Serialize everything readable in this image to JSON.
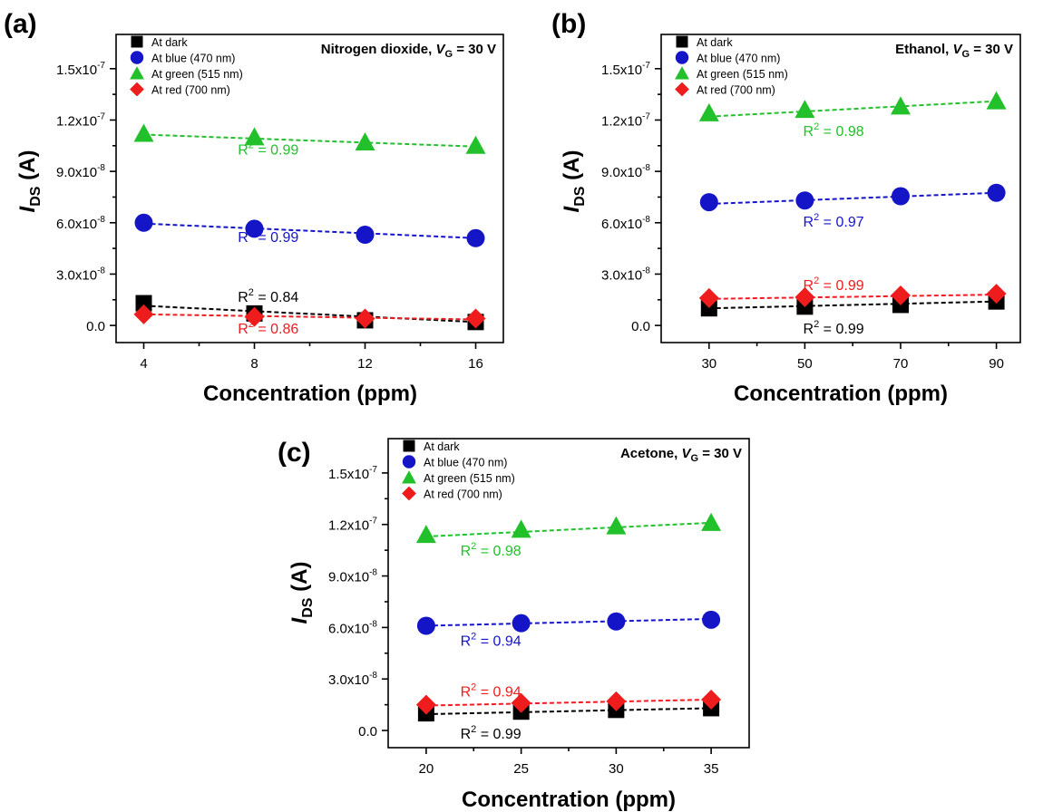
{
  "chart_data": [
    {
      "panel": "(a)",
      "type": "scatter",
      "title_main": "Nitrogen dioxide, ",
      "title_var": "V",
      "title_sub": "G",
      "title_rest": " = 30 V",
      "xlabel": "Concentration (ppm)",
      "ylabel_main": "I",
      "ylabel_sub": "DS",
      "ylabel_unit": " (A)",
      "xlim": [
        3,
        17
      ],
      "ylim": [
        -1e-08,
        1.7e-07
      ],
      "xticks": [
        4,
        8,
        12,
        16
      ],
      "xticklabels": [
        "4",
        "8",
        "12",
        "16"
      ],
      "yticks": [
        0,
        3e-08,
        6e-08,
        9e-08,
        1.2e-07,
        1.5e-07
      ],
      "yticklabels": [
        {
          "m": "0.0",
          "e": ""
        },
        {
          "m": "3.0x10",
          "e": "-8"
        },
        {
          "m": "6.0x10",
          "e": "-8"
        },
        {
          "m": "9.0x10",
          "e": "-8"
        },
        {
          "m": "1.2x10",
          "e": "-7"
        },
        {
          "m": "1.5x10",
          "e": "-7"
        }
      ],
      "series": [
        {
          "name": "At dark",
          "marker": "square",
          "color": "#000000",
          "x": [
            4,
            8,
            12,
            16
          ],
          "y": [
            1.3e-08,
            7e-09,
            3e-09,
            2e-09
          ],
          "fit": [
            1.15e-08,
            2e-09
          ],
          "r2": "0.84",
          "r2_pos": [
            8.5,
            1.7e-08
          ]
        },
        {
          "name": "At blue (470 nm)",
          "marker": "circle",
          "color": "#1515c8",
          "x": [
            4,
            8,
            12,
            16
          ],
          "y": [
            6e-08,
            5.65e-08,
            5.3e-08,
            5.1e-08
          ],
          "fit": [
            5.95e-08,
            5.1e-08
          ],
          "r2": "0.99",
          "r2_pos": [
            8.5,
            5.2e-08
          ]
        },
        {
          "name": "At green (515 nm)",
          "marker": "triangle",
          "color": "#22c02a",
          "x": [
            4,
            8,
            12,
            16
          ],
          "y": [
            1.12e-07,
            1.1e-07,
            1.07e-07,
            1.05e-07
          ],
          "fit": [
            1.115e-07,
            1.045e-07
          ],
          "r2": "0.99",
          "r2_pos": [
            8.5,
            1.03e-07
          ]
        },
        {
          "name": "At red (700 nm)",
          "marker": "diamond",
          "color": "#ee1c1c",
          "x": [
            4,
            8,
            12,
            16
          ],
          "y": [
            6.5e-09,
            5e-09,
            4e-09,
            4e-09
          ],
          "fit": [
            6.5e-09,
            3.5e-09
          ],
          "r2": "0.86",
          "r2_pos": [
            8.5,
            -1.5e-09
          ]
        }
      ]
    },
    {
      "panel": "(b)",
      "type": "scatter",
      "title_main": "Ethanol, ",
      "title_var": "V",
      "title_sub": "G",
      "title_rest": " = 30 V",
      "xlabel": "Concentration (ppm)",
      "ylabel_main": "I",
      "ylabel_sub": "DS",
      "ylabel_unit": " (A)",
      "xlim": [
        20,
        95
      ],
      "ylim": [
        -1e-08,
        1.7e-07
      ],
      "xticks": [
        30,
        50,
        70,
        90
      ],
      "xticklabels": [
        "30",
        "50",
        "70",
        "90"
      ],
      "yticks": [
        0,
        3e-08,
        6e-08,
        9e-08,
        1.2e-07,
        1.5e-07
      ],
      "yticklabels": [
        {
          "m": "0.0",
          "e": ""
        },
        {
          "m": "3.0x10",
          "e": "-8"
        },
        {
          "m": "6.0x10",
          "e": "-8"
        },
        {
          "m": "9.0x10",
          "e": "-8"
        },
        {
          "m": "1.2x10",
          "e": "-7"
        },
        {
          "m": "1.5x10",
          "e": "-7"
        }
      ],
      "series": [
        {
          "name": "At dark",
          "marker": "square",
          "color": "#000000",
          "x": [
            30,
            50,
            70,
            90
          ],
          "y": [
            1e-08,
            1.1e-08,
            1.2e-08,
            1.4e-08
          ],
          "fit": [
            1e-08,
            1.4e-08
          ],
          "r2": "0.99",
          "r2_pos": [
            56,
            -1.5e-09
          ]
        },
        {
          "name": "At blue (470 nm)",
          "marker": "circle",
          "color": "#1515c8",
          "x": [
            30,
            50,
            70,
            90
          ],
          "y": [
            7.2e-08,
            7.3e-08,
            7.55e-08,
            7.75e-08
          ],
          "fit": [
            7.1e-08,
            7.75e-08
          ],
          "r2": "0.97",
          "r2_pos": [
            56,
            6.1e-08
          ]
        },
        {
          "name": "At green (515 nm)",
          "marker": "triangle",
          "color": "#22c02a",
          "x": [
            30,
            50,
            70,
            90
          ],
          "y": [
            1.24e-07,
            1.26e-07,
            1.28e-07,
            1.31e-07
          ],
          "fit": [
            1.22e-07,
            1.31e-07
          ],
          "r2": "0.98",
          "r2_pos": [
            56,
            1.14e-07
          ]
        },
        {
          "name": "At red (700 nm)",
          "marker": "diamond",
          "color": "#ee1c1c",
          "x": [
            30,
            50,
            70,
            90
          ],
          "y": [
            1.6e-08,
            1.65e-08,
            1.75e-08,
            1.85e-08
          ],
          "fit": [
            1.55e-08,
            1.8e-08
          ],
          "r2": "0.99",
          "r2_pos": [
            56,
            2.4e-08
          ]
        }
      ]
    },
    {
      "panel": "(c)",
      "type": "scatter",
      "title_main": "Acetone, ",
      "title_var": "V",
      "title_sub": "G",
      "title_rest": " = 30 V",
      "xlabel": "Concentration (ppm)",
      "ylabel_main": "I",
      "ylabel_sub": "DS",
      "ylabel_unit": " (A)",
      "xlim": [
        18,
        37
      ],
      "ylim": [
        -1e-08,
        1.7e-07
      ],
      "xticks": [
        20,
        25,
        30,
        35
      ],
      "xticklabels": [
        "20",
        "25",
        "30",
        "35"
      ],
      "yticks": [
        0,
        3e-08,
        6e-08,
        9e-08,
        1.2e-07,
        1.5e-07
      ],
      "yticklabels": [
        {
          "m": "0.0",
          "e": ""
        },
        {
          "m": "3.0x10",
          "e": "-8"
        },
        {
          "m": "6.0x10",
          "e": "-8"
        },
        {
          "m": "9.0x10",
          "e": "-8"
        },
        {
          "m": "1.2x10",
          "e": "-7"
        },
        {
          "m": "1.5x10",
          "e": "-7"
        }
      ],
      "series": [
        {
          "name": "At dark",
          "marker": "square",
          "color": "#000000",
          "x": [
            20,
            25,
            30,
            35
          ],
          "y": [
            1e-08,
            1.1e-08,
            1.2e-08,
            1.3e-08
          ],
          "fit": [
            9.5e-09,
            1.3e-08
          ],
          "r2": "0.99",
          "r2_pos": [
            23.4,
            -1.5e-09
          ]
        },
        {
          "name": "At blue (470 nm)",
          "marker": "circle",
          "color": "#1515c8",
          "x": [
            20,
            25,
            30,
            35
          ],
          "y": [
            6.1e-08,
            6.25e-08,
            6.35e-08,
            6.45e-08
          ],
          "fit": [
            6.1e-08,
            6.5e-08
          ],
          "r2": "0.94",
          "r2_pos": [
            23.4,
            5.25e-08
          ]
        },
        {
          "name": "At green (515 nm)",
          "marker": "triangle",
          "color": "#22c02a",
          "x": [
            20,
            25,
            30,
            35
          ],
          "y": [
            1.14e-07,
            1.17e-07,
            1.19e-07,
            1.21e-07
          ],
          "fit": [
            1.13e-07,
            1.21e-07
          ],
          "r2": "0.98",
          "r2_pos": [
            23.4,
            1.05e-07
          ]
        },
        {
          "name": "At red (700 nm)",
          "marker": "diamond",
          "color": "#ee1c1c",
          "x": [
            20,
            25,
            30,
            35
          ],
          "y": [
            1.5e-08,
            1.6e-08,
            1.7e-08,
            1.8e-08
          ],
          "fit": [
            1.45e-08,
            1.8e-08
          ],
          "r2": "0.94",
          "r2_pos": [
            23.4,
            2.3e-08
          ]
        }
      ]
    }
  ]
}
